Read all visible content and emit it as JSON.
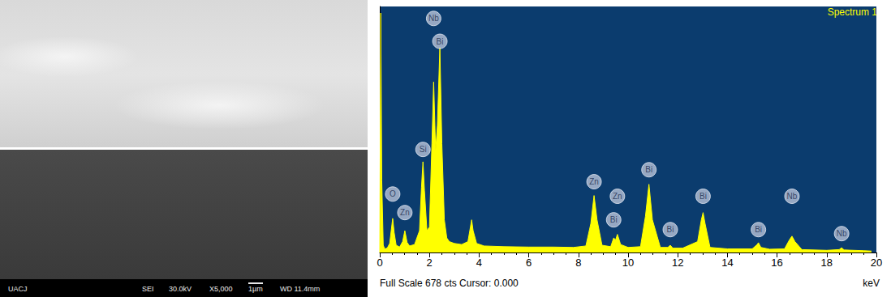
{
  "sem_image": {
    "info_bar": [
      "UACJ",
      "SEI",
      "30.0kV",
      "X5,000",
      "1µm",
      "WD 11.4mm"
    ]
  },
  "chart_data": {
    "type": "area",
    "title": "Spectrum 1",
    "x_label": "keV",
    "footer": "Full Scale 678 cts Cursor: 0.000",
    "color": "#ffff00",
    "x": [
      0,
      0.04,
      0.08,
      0.14,
      0.2,
      0.3,
      0.4,
      0.46,
      0.52,
      0.58,
      0.66,
      0.8,
      0.92,
      1.01,
      1.1,
      1.2,
      1.4,
      1.6,
      1.68,
      1.74,
      1.8,
      1.9,
      2.0,
      2.1,
      2.17,
      2.25,
      2.32,
      2.42,
      2.5,
      2.6,
      2.7,
      2.8,
      3.0,
      3.3,
      3.55,
      3.65,
      3.7,
      3.76,
      3.9,
      4.2,
      5,
      6,
      7,
      7.8,
      8.3,
      8.5,
      8.63,
      8.75,
      8.95,
      9.3,
      9.42,
      9.5,
      9.57,
      9.7,
      10.0,
      10.5,
      10.7,
      10.84,
      10.98,
      11.3,
      11.6,
      11.7,
      11.8,
      12.2,
      12.8,
      12.95,
      13.02,
      13.1,
      13.3,
      14,
      15.0,
      15.2,
      15.25,
      15.35,
      15.7,
      16.3,
      16.5,
      16.6,
      16.72,
      17,
      18,
      18.5,
      18.6,
      18.7,
      19.5,
      19.8
    ],
    "values": [
      0,
      660,
      200,
      20,
      10,
      12,
      25,
      60,
      94,
      55,
      20,
      15,
      30,
      60,
      28,
      18,
      22,
      60,
      180,
      250,
      170,
      60,
      70,
      300,
      470,
      280,
      350,
      565,
      300,
      90,
      40,
      30,
      25,
      22,
      30,
      70,
      90,
      60,
      25,
      18,
      16,
      15,
      15,
      14,
      18,
      80,
      157,
      90,
      20,
      16,
      40,
      35,
      50,
      22,
      14,
      16,
      100,
      188,
      90,
      14,
      14,
      20,
      12,
      12,
      30,
      90,
      110,
      80,
      14,
      10,
      10,
      22,
      27,
      14,
      9,
      10,
      35,
      45,
      30,
      8,
      6,
      8,
      13,
      7,
      5,
      4
    ],
    "xlim": [
      0,
      20
    ],
    "xticks": [
      0,
      2,
      4,
      6,
      8,
      10,
      12,
      14,
      16,
      18,
      20
    ],
    "ylim": [
      0,
      678
    ],
    "tick_labels": "x",
    "grid": false,
    "annotations": [
      {
        "label": "O",
        "x": 0.52,
        "y": 161
      },
      {
        "label": "Zn",
        "x": 1.01,
        "y": 110
      },
      {
        "label": "Si",
        "x": 1.74,
        "y": 284
      },
      {
        "label": "Nb",
        "x": 2.17,
        "y": 645
      },
      {
        "label": "Bi",
        "x": 2.42,
        "y": 582
      },
      {
        "label": "Zn",
        "x": 8.63,
        "y": 195
      },
      {
        "label": "Zn",
        "x": 9.57,
        "y": 155
      },
      {
        "label": "Bi",
        "x": 9.42,
        "y": 90
      },
      {
        "label": "Bi",
        "x": 10.84,
        "y": 228
      },
      {
        "label": "Bi",
        "x": 11.7,
        "y": 63
      },
      {
        "label": "Bi",
        "x": 13.02,
        "y": 155
      },
      {
        "label": "Bi",
        "x": 15.25,
        "y": 63
      },
      {
        "label": "Nb",
        "x": 16.6,
        "y": 155
      },
      {
        "label": "Nb",
        "x": 18.6,
        "y": 52
      }
    ]
  }
}
